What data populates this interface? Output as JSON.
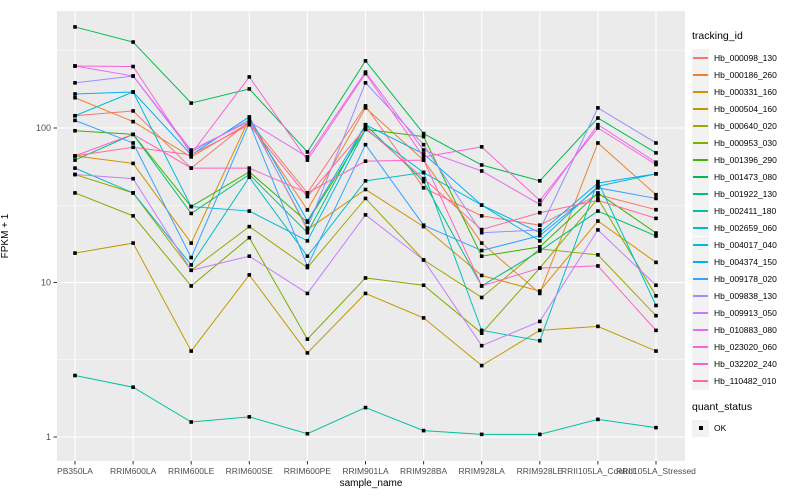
{
  "figure": {
    "background": "#FFFFFF",
    "panel_background": "#EBEBEB",
    "grid_color": "#FFFFFF",
    "tick_label_color": "#4D4D4D",
    "point_color": "#000000"
  },
  "chart_data": {
    "type": "line",
    "title": "",
    "xlabel": "sample_name",
    "ylabel": "FPKM + 1",
    "y_scale": "log10",
    "grid": true,
    "legend_position": "right",
    "y_ticks": [
      1,
      10,
      100
    ],
    "y_minor_ticks": [
      3.162,
      31.62,
      316.2
    ],
    "ylim": [
      0.9,
      580
    ],
    "categories": [
      "PB350LA",
      "RRIM600LA",
      "RRIM600LE",
      "RRIM600SE",
      "RRIM600PE",
      "RRIM901LA",
      "RRIM928BA",
      "RRIM928LA",
      "RRIM928LE",
      "RRII105LA_Control",
      "RRII105LA_Stressed"
    ],
    "point_marker": {
      "shape": "square",
      "color": "#000000",
      "size": 3.6
    },
    "legend": {
      "title": "tracking_id"
    },
    "quant_legend": {
      "title": "quant_status",
      "items": [
        {
          "label": "OK",
          "shape": "square",
          "color": "#000000"
        }
      ]
    },
    "series": [
      {
        "name": "Hb_000098_130",
        "color": "#F8766D",
        "values": [
          120,
          129,
          55,
          110,
          38,
          139,
          41,
          27,
          23.5,
          37,
          29.6
        ]
      },
      {
        "name": "Hb_000186_260",
        "color": "#EA8331",
        "values": [
          157,
          110,
          65,
          108,
          29.5,
          135,
          62,
          18,
          8.5,
          80,
          37
        ]
      },
      {
        "name": "Hb_000331_160",
        "color": "#D89000",
        "values": [
          66,
          59,
          18,
          115,
          22,
          40,
          23,
          11.1,
          8.8,
          25,
          13.5
        ]
      },
      {
        "name": "Hb_000504_160",
        "color": "#C09B00",
        "values": [
          15.5,
          18,
          3.6,
          11.2,
          3.5,
          8.5,
          5.9,
          2.9,
          4.9,
          5.2,
          3.6
        ]
      },
      {
        "name": "Hb_000640_020",
        "color": "#A3A500",
        "values": [
          50,
          38,
          12,
          23,
          12.5,
          35,
          14,
          8,
          16.5,
          15.1,
          6.1
        ]
      },
      {
        "name": "Hb_000953_030",
        "color": "#7CAE00",
        "values": [
          38,
          27,
          9.5,
          19.5,
          4.3,
          10.7,
          9.6,
          4.7,
          12.4,
          35,
          8.2
        ]
      },
      {
        "name": "Hb_001396_290",
        "color": "#39B600",
        "values": [
          96,
          91,
          31,
          52,
          24.6,
          98,
          88,
          14.8,
          17,
          38,
          20.9
        ]
      },
      {
        "name": "Hb_001473_080",
        "color": "#00BB4E",
        "values": [
          451,
          360,
          145,
          179,
          70,
          272,
          92,
          57.6,
          45.5,
          116,
          69
        ]
      },
      {
        "name": "Hb_001922_130",
        "color": "#00BF7D",
        "values": [
          62,
          91,
          28,
          50,
          21,
          105,
          45,
          9.5,
          16,
          29,
          20
        ]
      },
      {
        "name": "Hb_002411_180",
        "color": "#00C1A3",
        "values": [
          2.5,
          2.1,
          1.25,
          1.35,
          1.05,
          1.55,
          1.1,
          1.04,
          1.04,
          1.3,
          1.15
        ]
      },
      {
        "name": "Hb_002659_060",
        "color": "#00BFC4",
        "values": [
          55,
          38,
          13,
          48,
          14.8,
          45.5,
          51.5,
          4.9,
          4.2,
          45,
          7.1
        ]
      },
      {
        "name": "Hb_004017_040",
        "color": "#00BAE0",
        "values": [
          120,
          171,
          31,
          29,
          18.6,
          98,
          51.5,
          31.7,
          18.6,
          42,
          50.5
        ]
      },
      {
        "name": "Hb_004374_150",
        "color": "#00B0F6",
        "values": [
          166,
          171,
          67,
          118,
          25,
          105,
          68,
          31.7,
          21,
          44,
          50.5
        ]
      },
      {
        "name": "Hb_009178_020",
        "color": "#35A2FF",
        "values": [
          112,
          80,
          14.5,
          108,
          12.8,
          78,
          23.5,
          16.1,
          20.1,
          41,
          35
        ]
      },
      {
        "name": "Hb_009838_130",
        "color": "#9590FF",
        "values": [
          196,
          217,
          70,
          113,
          22.5,
          196,
          78,
          21,
          21.9,
          135,
          80
        ]
      },
      {
        "name": "Hb_009913_050",
        "color": "#C77CFF",
        "values": [
          50,
          47,
          12,
          14.8,
          8.5,
          27.4,
          14,
          3.9,
          5.6,
          21.9,
          9.6
        ]
      },
      {
        "name": "Hb_010883_080",
        "color": "#E76BF3",
        "values": [
          252,
          217,
          72,
          110,
          65,
          230,
          72,
          52.7,
          32,
          105,
          60
        ]
      },
      {
        "name": "Hb_023020_060",
        "color": "#FA62DB",
        "values": [
          252,
          250,
          68,
          214,
          62,
          225,
          65,
          75.5,
          34,
          100,
          58
        ]
      },
      {
        "name": "Hb_032202_240",
        "color": "#FF61C3",
        "values": [
          66,
          91,
          55,
          55,
          38,
          61,
          62,
          9.5,
          12.4,
          12.8,
          4.9
        ]
      },
      {
        "name": "Hb_110482_010",
        "color": "#FF6A98",
        "values": [
          66,
          75,
          67,
          105,
          36,
          100,
          47,
          22,
          28.3,
          34,
          26
        ]
      }
    ]
  }
}
